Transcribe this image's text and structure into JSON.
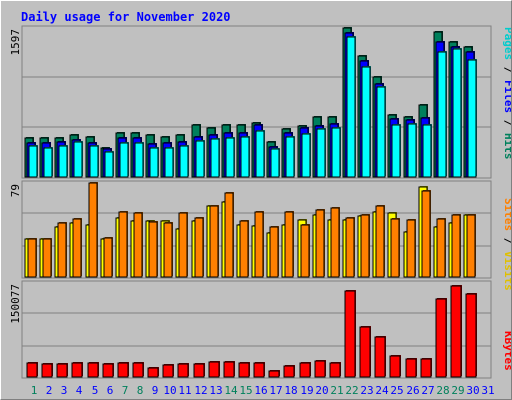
{
  "chart_data": {
    "type": "bar",
    "title": "Daily usage for November 2020",
    "categories": [
      "1",
      "2",
      "3",
      "4",
      "5",
      "6",
      "7",
      "8",
      "9",
      "10",
      "11",
      "12",
      "13",
      "14",
      "15",
      "16",
      "17",
      "18",
      "19",
      "20",
      "21",
      "22",
      "23",
      "24",
      "25",
      "26",
      "27",
      "28",
      "29",
      "30",
      "31"
    ],
    "weekend_days": [
      "1",
      "7",
      "8",
      "14",
      "15",
      "21",
      "22",
      "28",
      "29"
    ],
    "panels": [
      {
        "id": "hits",
        "scale_label": "1597",
        "ymax": 1597,
        "axis_label": {
          "pages": "Pages",
          "files": "Files",
          "hits": "Hits",
          "sep": " / "
        },
        "series": [
          {
            "name": "Hits",
            "color": "#00805c",
            "values": [
              420,
              420,
              420,
              445,
              430,
              310,
              470,
              470,
              455,
              430,
              450,
              560,
              520,
              560,
              560,
              580,
              370,
              510,
              550,
              640,
              640,
              1597,
              1300,
              1070,
              660,
              640,
              770,
              1550,
              1450,
              1390,
              0
            ]
          },
          {
            "name": "Files",
            "color": "#0000ff",
            "values": [
              360,
              360,
              380,
              400,
              360,
              300,
              420,
              420,
              350,
              360,
              380,
              430,
              450,
              470,
              470,
              560,
              320,
              470,
              520,
              550,
              570,
              1540,
              1240,
              1000,
              620,
              610,
              630,
              1450,
              1390,
              1340,
              0
            ]
          },
          {
            "name": "Pages",
            "color": "#00ffff",
            "values": [
              330,
              310,
              330,
              370,
              330,
              270,
              360,
              360,
              310,
              310,
              330,
              390,
              410,
              420,
              430,
              490,
              300,
              430,
              460,
              510,
              530,
              1500,
              1180,
              960,
              560,
              570,
              560,
              1340,
              1370,
              1250,
              0
            ]
          }
        ]
      },
      {
        "id": "visits",
        "scale_label": "79",
        "ymax": 79,
        "axis_label": {
          "sites": "Sites",
          "visits": "Visits",
          "sep": " / "
        },
        "series": [
          {
            "name": "Visits",
            "color": "#ffff00",
            "values": [
              32,
              32,
              42,
              45,
              44,
              32,
              50,
              47,
              47,
              47,
              40,
              47,
              60,
              63,
              44,
              43,
              37,
              44,
              48,
              52,
              48,
              48,
              51,
              55,
              54,
              38,
              76,
              42,
              45,
              52,
              0
            ]
          },
          {
            "name": "Sites",
            "color": "#ff8000",
            "values": [
              32,
              32,
              45,
              49,
              79,
              33,
              55,
              54,
              46,
              45,
              54,
              50,
              60,
              71,
              47,
              55,
              42,
              55,
              44,
              56,
              58,
              50,
              52,
              60,
              49,
              48,
              72,
              49,
              52,
              52,
              0
            ]
          }
        ]
      },
      {
        "id": "kbytes",
        "scale_label": "150077",
        "ymax": 150077,
        "axis_label": {
          "kbytes": "KBytes"
        },
        "series": [
          {
            "name": "KBytes",
            "color": "#ff0000",
            "values": [
              22000,
              21000,
              20000,
              22000,
              23000,
              20000,
              23000,
              23000,
              14000,
              19000,
              20000,
              21000,
              24000,
              24000,
              22000,
              22000,
              9000,
              18000,
              23000,
              25000,
              23000,
              138000,
              80000,
              64000,
              33000,
              29000,
              29000,
              125000,
              145000,
              132000,
              0
            ]
          }
        ]
      }
    ]
  },
  "colors": {
    "title": "#0000ff",
    "weekday_label": "#0000ff",
    "weekend_label": "#00805c",
    "plot_bg": "#c0c0c0",
    "grid": "#808080"
  }
}
